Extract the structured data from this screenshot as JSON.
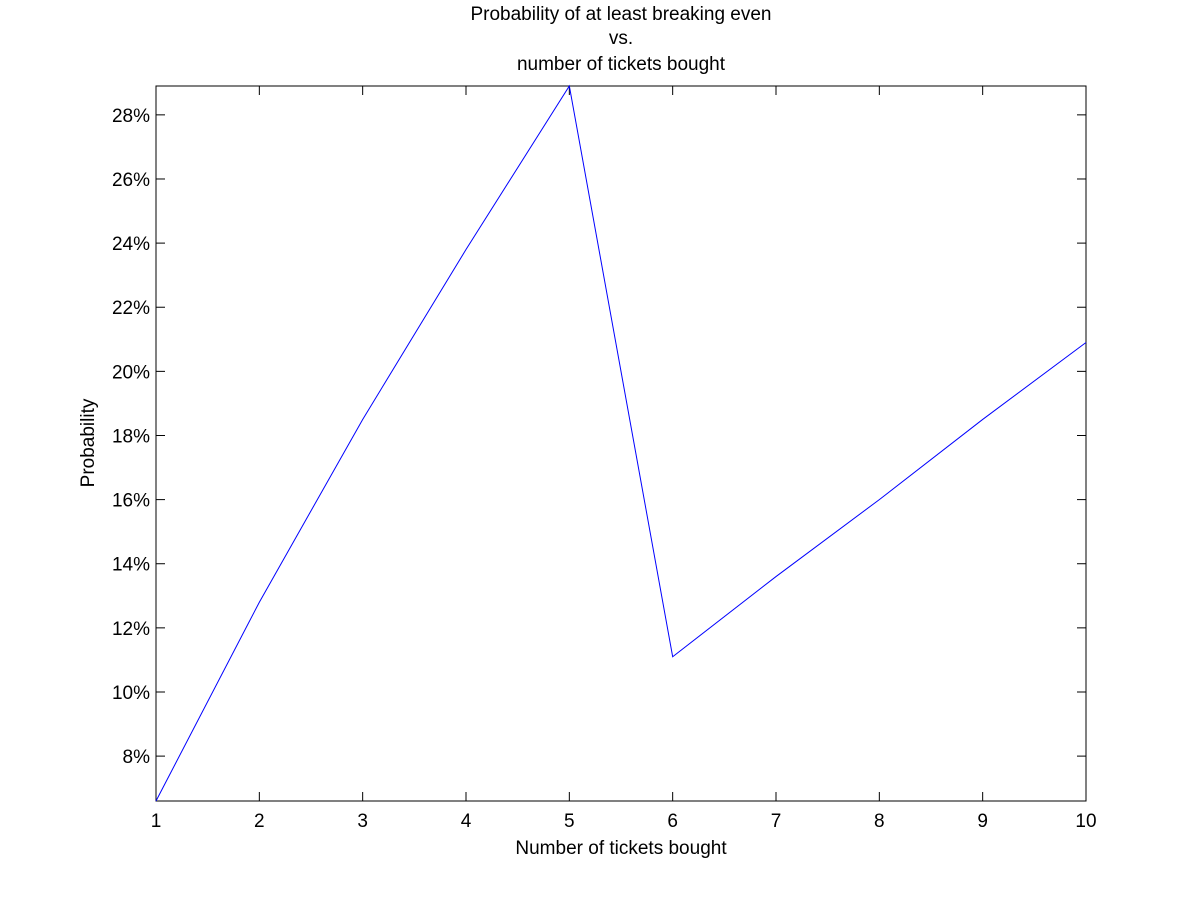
{
  "chart_data": {
    "type": "line",
    "title_lines": [
      "Probability of at least breaking even",
      "vs.",
      "number of tickets bought"
    ],
    "xlabel": "Number of tickets bought",
    "ylabel": "Probability",
    "xlim": [
      1,
      10
    ],
    "ylim": [
      0.066,
      0.289
    ],
    "x_ticks": [
      1,
      2,
      3,
      4,
      5,
      6,
      7,
      8,
      9,
      10
    ],
    "x_tick_labels": [
      "1",
      "2",
      "3",
      "4",
      "5",
      "6",
      "7",
      "8",
      "9",
      "10"
    ],
    "y_ticks": [
      0.08,
      0.1,
      0.12,
      0.14,
      0.16,
      0.18,
      0.2,
      0.22,
      0.24,
      0.26,
      0.28
    ],
    "y_tick_labels": [
      "8%",
      "10%",
      "12%",
      "14%",
      "16%",
      "18%",
      "20%",
      "22%",
      "24%",
      "26%",
      "28%"
    ],
    "grid": false,
    "series": [
      {
        "color": "#0000ff",
        "x": [
          1,
          2,
          3,
          4,
          5,
          6,
          7,
          8,
          9,
          10
        ],
        "y": [
          0.066,
          0.128,
          0.185,
          0.238,
          0.289,
          0.111,
          0.136,
          0.16,
          0.185,
          0.209
        ]
      }
    ]
  },
  "colors": {
    "background": "#ffffff",
    "axes": "#000000",
    "line": "#0000ff"
  }
}
